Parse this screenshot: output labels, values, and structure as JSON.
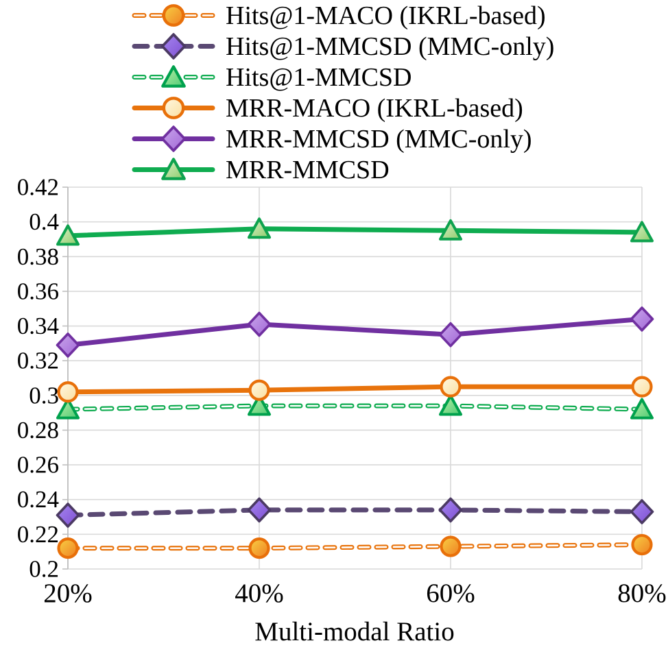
{
  "chart_data": {
    "type": "line",
    "title": "",
    "xlabel": "Multi-modal Ratio",
    "ylabel": "",
    "categories": [
      "20%",
      "40%",
      "60%",
      "80%"
    ],
    "ylim": [
      0.2,
      0.42
    ],
    "ytick_labels": [
      "0.2",
      "0.22",
      "0.24",
      "0.26",
      "0.28",
      "0.3",
      "0.32",
      "0.34",
      "0.36",
      "0.38",
      "0.4",
      "0.42"
    ],
    "grid": true,
    "legend_position": "top",
    "gridline_color": "#D9D9D9",
    "axis_color": "#BFBFBF",
    "series": [
      {
        "name": "Hits@1-MACO (IKRL-based)",
        "values": [
          0.212,
          0.212,
          0.213,
          0.214
        ],
        "color": "#E8730C",
        "line_style": "dashed",
        "dash": "14 11",
        "hollow_dash": true,
        "marker": "circle",
        "marker_fill_id": "gradOrange",
        "marker_stroke": "#E8700A"
      },
      {
        "name": "Hits@1-MMCSD (MMC-only)",
        "values": [
          0.231,
          0.234,
          0.234,
          0.233
        ],
        "color": "#5A4973",
        "line_style": "dashed",
        "dash": "19 13",
        "hollow_dash": false,
        "marker": "diamond",
        "marker_fill_id": "gradViolet",
        "marker_stroke": "#4B3A63"
      },
      {
        "name": "Hits@1-MMCSD",
        "values": [
          0.292,
          0.294,
          0.294,
          0.292
        ],
        "color": "#0FAC50",
        "line_style": "dashed",
        "dash": "14 11",
        "hollow_dash": true,
        "marker": "triangle",
        "marker_fill_id": "gradGreenBright",
        "marker_stroke": "#00A14D"
      },
      {
        "name": "MRR-MACO (IKRL-based)",
        "values": [
          0.302,
          0.303,
          0.305,
          0.305
        ],
        "color": "#E8730C",
        "line_style": "solid",
        "dash": null,
        "hollow_dash": false,
        "marker": "circle",
        "marker_fill_id": "gradCream",
        "marker_stroke": "#E8700A"
      },
      {
        "name": "MRR-MMCSD (MMC-only)",
        "values": [
          0.329,
          0.341,
          0.335,
          0.344
        ],
        "color": "#7030A0",
        "line_style": "solid",
        "dash": null,
        "hollow_dash": false,
        "marker": "diamond",
        "marker_fill_id": "gradLilac",
        "marker_stroke": "#7030A0"
      },
      {
        "name": "MRR-MMCSD",
        "values": [
          0.392,
          0.396,
          0.395,
          0.394
        ],
        "color": "#0FAC50",
        "line_style": "solid",
        "dash": null,
        "hollow_dash": false,
        "marker": "triangle",
        "marker_fill_id": "gradGreenLight",
        "marker_stroke": "#0EA24E"
      }
    ]
  }
}
